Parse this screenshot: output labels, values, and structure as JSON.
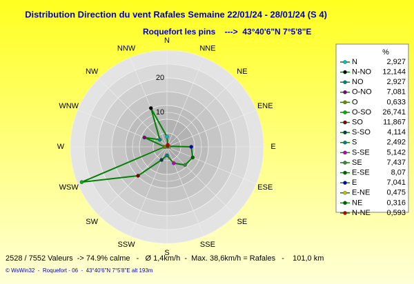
{
  "chart_data": {
    "type": "polar",
    "title": "Distribution Direction du vent Rafales  Semaine 22/01/24 - 28/01/24 (S 4)",
    "subtitle": "Roquefort les pins    --->  43°40'6\"N 7°5'8\"E",
    "rlim": [
      0,
      28
    ],
    "rticks": [
      10,
      20
    ],
    "angular_labels": [
      "N",
      "NNE",
      "NE",
      "ENE",
      "E",
      "ESE",
      "SE",
      "SSE",
      "S",
      "SSW",
      "SW",
      "WSW",
      "W",
      "WNW",
      "NW",
      "NNW"
    ],
    "legend_header": "%",
    "categories": [
      "N",
      "N-NO",
      "NO",
      "O-NO",
      "O",
      "O-SO",
      "SO",
      "S-SO",
      "S",
      "S-SE",
      "SE",
      "E-SE",
      "E",
      "E-NE",
      "NE",
      "N-NE"
    ],
    "values": [
      2.927,
      12.144,
      2.927,
      7.081,
      0.633,
      26.741,
      11.867,
      4.114,
      2.492,
      5.142,
      7.437,
      8.07,
      7.041,
      0.475,
      0.316,
      0.593
    ],
    "value_labels": [
      "2,927",
      "12,144",
      "2,927",
      "7,081",
      "0,633",
      "26,741",
      "11,867",
      "4,114",
      "2,492",
      "5,142",
      "7,437",
      "8,07",
      "7,041",
      "0,475",
      "0,316",
      "0,593"
    ],
    "colors": [
      "#00c0c0",
      "#000000",
      "#008080",
      "#800080",
      "#808000",
      "#00b000",
      "#800000",
      "#004040",
      "#008080",
      "#c000c0",
      "#408040",
      "#006000",
      "#0000c0",
      "#c0c000",
      "#006000",
      "#c00000"
    ],
    "line_color": "#008000"
  },
  "footer": {
    "stats": "2528 / 7552 Valeurs  -> 74.9% calme   -   Ø 1,4km/h  -  Max. 38,6km/h = Rafales   -    101,0 km",
    "credit": "© WsWin32  -  Roquefort - 06  -  43°40'6\"N 7°5'8\"E alt 193m"
  }
}
